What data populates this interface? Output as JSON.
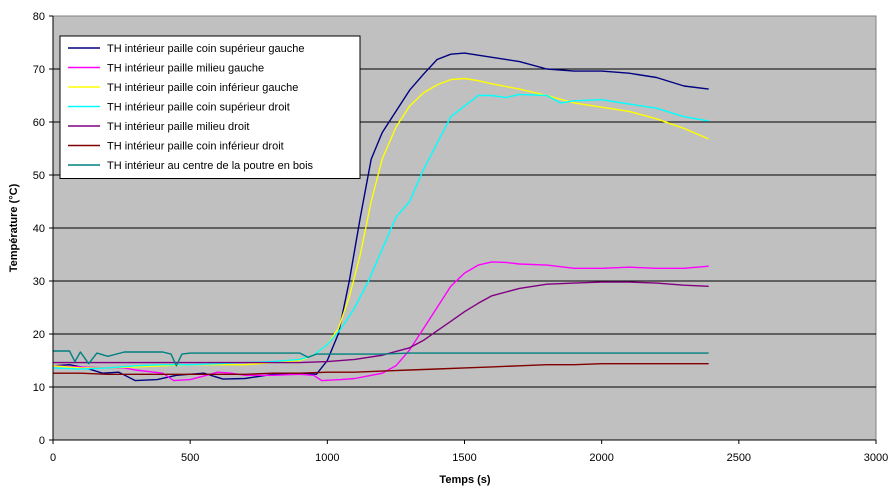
{
  "chart_data": {
    "type": "line",
    "xlabel": "Temps (s)",
    "ylabel": "Température (°C)",
    "xlim": [
      0,
      3000
    ],
    "ylim": [
      0,
      80
    ],
    "xticks": [
      0,
      500,
      1000,
      1500,
      2000,
      2500,
      3000
    ],
    "yticks": [
      0,
      10,
      20,
      30,
      40,
      50,
      60,
      70,
      80
    ],
    "grid": "horizontal",
    "legend_position": "top-left",
    "plot_background": "#c0c0c0",
    "series": [
      {
        "name": "TH intérieur paille coin supérieur gauche",
        "color": "#000080",
        "points": [
          [
            0,
            14
          ],
          [
            60,
            14.2
          ],
          [
            120,
            13.6
          ],
          [
            180,
            12.6
          ],
          [
            240,
            12.8
          ],
          [
            300,
            11.2
          ],
          [
            380,
            11.4
          ],
          [
            450,
            12.2
          ],
          [
            550,
            12.6
          ],
          [
            620,
            11.5
          ],
          [
            700,
            11.6
          ],
          [
            800,
            12.4
          ],
          [
            900,
            12.6
          ],
          [
            960,
            12.4
          ],
          [
            1000,
            15
          ],
          [
            1040,
            20
          ],
          [
            1080,
            30
          ],
          [
            1120,
            42
          ],
          [
            1160,
            53
          ],
          [
            1200,
            58
          ],
          [
            1250,
            62
          ],
          [
            1300,
            66
          ],
          [
            1350,
            69
          ],
          [
            1400,
            71.8
          ],
          [
            1450,
            72.8
          ],
          [
            1500,
            73
          ],
          [
            1550,
            72.6
          ],
          [
            1600,
            72.2
          ],
          [
            1700,
            71.4
          ],
          [
            1800,
            70
          ],
          [
            1900,
            69.6
          ],
          [
            2000,
            69.6
          ],
          [
            2100,
            69.2
          ],
          [
            2200,
            68.4
          ],
          [
            2300,
            66.8
          ],
          [
            2390,
            66.2
          ]
        ]
      },
      {
        "name": "TH intérieur paille milieu gauche",
        "color": "#ff00ff",
        "points": [
          [
            0,
            14
          ],
          [
            100,
            13.8
          ],
          [
            200,
            13.6
          ],
          [
            260,
            13.6
          ],
          [
            300,
            13.2
          ],
          [
            400,
            12.6
          ],
          [
            440,
            11.2
          ],
          [
            500,
            11.4
          ],
          [
            560,
            12.2
          ],
          [
            600,
            12.8
          ],
          [
            650,
            12.6
          ],
          [
            700,
            12.2
          ],
          [
            800,
            12.2
          ],
          [
            900,
            12.4
          ],
          [
            950,
            12.2
          ],
          [
            980,
            11.2
          ],
          [
            1050,
            11.4
          ],
          [
            1100,
            11.6
          ],
          [
            1200,
            12.6
          ],
          [
            1250,
            14
          ],
          [
            1300,
            17
          ],
          [
            1350,
            21
          ],
          [
            1400,
            25
          ],
          [
            1450,
            29
          ],
          [
            1500,
            31.5
          ],
          [
            1550,
            33
          ],
          [
            1600,
            33.6
          ],
          [
            1650,
            33.5
          ],
          [
            1700,
            33.2
          ],
          [
            1800,
            33
          ],
          [
            1900,
            32.4
          ],
          [
            2000,
            32.4
          ],
          [
            2100,
            32.6
          ],
          [
            2200,
            32.4
          ],
          [
            2300,
            32.4
          ],
          [
            2390,
            32.8
          ]
        ]
      },
      {
        "name": "TH intérieur paille coin inférieur gauche",
        "color": "#ffff00",
        "points": [
          [
            0,
            14
          ],
          [
            100,
            13.6
          ],
          [
            200,
            13.6
          ],
          [
            300,
            13.8
          ],
          [
            400,
            14
          ],
          [
            500,
            14.2
          ],
          [
            600,
            14.2
          ],
          [
            700,
            14.2
          ],
          [
            800,
            14.6
          ],
          [
            900,
            15
          ],
          [
            950,
            16
          ],
          [
            1000,
            18
          ],
          [
            1040,
            21
          ],
          [
            1080,
            27
          ],
          [
            1120,
            35
          ],
          [
            1160,
            45
          ],
          [
            1200,
            53
          ],
          [
            1250,
            59
          ],
          [
            1300,
            63
          ],
          [
            1350,
            65.5
          ],
          [
            1400,
            67
          ],
          [
            1450,
            68
          ],
          [
            1500,
            68.2
          ],
          [
            1550,
            67.8
          ],
          [
            1600,
            67.2
          ],
          [
            1700,
            66.2
          ],
          [
            1800,
            65
          ],
          [
            1900,
            63.6
          ],
          [
            2000,
            62.8
          ],
          [
            2100,
            62
          ],
          [
            2200,
            60.6
          ],
          [
            2300,
            58.8
          ],
          [
            2390,
            56.8
          ]
        ]
      },
      {
        "name": "TH intérieur paille coin supérieur droit",
        "color": "#00ffff",
        "points": [
          [
            0,
            13.6
          ],
          [
            100,
            13.4
          ],
          [
            200,
            13.6
          ],
          [
            300,
            14
          ],
          [
            400,
            14.2
          ],
          [
            500,
            14.2
          ],
          [
            600,
            14.4
          ],
          [
            700,
            14.6
          ],
          [
            800,
            14.8
          ],
          [
            900,
            15.2
          ],
          [
            950,
            16
          ],
          [
            1000,
            18
          ],
          [
            1050,
            21
          ],
          [
            1100,
            25
          ],
          [
            1150,
            30
          ],
          [
            1200,
            36
          ],
          [
            1250,
            42
          ],
          [
            1300,
            45
          ],
          [
            1350,
            51
          ],
          [
            1400,
            56
          ],
          [
            1450,
            61
          ],
          [
            1500,
            63
          ],
          [
            1550,
            65
          ],
          [
            1600,
            65
          ],
          [
            1650,
            64.6
          ],
          [
            1700,
            65.2
          ],
          [
            1800,
            65
          ],
          [
            1850,
            63.6
          ],
          [
            1900,
            64
          ],
          [
            2000,
            64.2
          ],
          [
            2100,
            63.4
          ],
          [
            2200,
            62.6
          ],
          [
            2300,
            61
          ],
          [
            2390,
            60.2
          ]
        ]
      },
      {
        "name": "TH intérieur paille milieu droit",
        "color": "#800080",
        "points": [
          [
            0,
            14.6
          ],
          [
            100,
            14.6
          ],
          [
            200,
            14.6
          ],
          [
            300,
            14.6
          ],
          [
            400,
            14.6
          ],
          [
            500,
            14.6
          ],
          [
            600,
            14.6
          ],
          [
            700,
            14.6
          ],
          [
            800,
            14.6
          ],
          [
            900,
            14.6
          ],
          [
            1000,
            14.8
          ],
          [
            1100,
            15.2
          ],
          [
            1200,
            16
          ],
          [
            1300,
            17.4
          ],
          [
            1350,
            18.8
          ],
          [
            1400,
            20.6
          ],
          [
            1450,
            22.4
          ],
          [
            1500,
            24.2
          ],
          [
            1550,
            25.8
          ],
          [
            1600,
            27.2
          ],
          [
            1700,
            28.6
          ],
          [
            1800,
            29.4
          ],
          [
            1900,
            29.6
          ],
          [
            2000,
            29.8
          ],
          [
            2100,
            29.8
          ],
          [
            2200,
            29.6
          ],
          [
            2300,
            29.2
          ],
          [
            2390,
            29
          ]
        ]
      },
      {
        "name": "TH intérieur paille coin inférieur droit",
        "color": "#800000",
        "points": [
          [
            0,
            12.6
          ],
          [
            100,
            12.6
          ],
          [
            200,
            12.4
          ],
          [
            300,
            12.4
          ],
          [
            400,
            12.4
          ],
          [
            500,
            12.4
          ],
          [
            600,
            12.4
          ],
          [
            700,
            12.4
          ],
          [
            800,
            12.6
          ],
          [
            900,
            12.6
          ],
          [
            1000,
            12.8
          ],
          [
            1100,
            12.8
          ],
          [
            1200,
            13
          ],
          [
            1300,
            13.2
          ],
          [
            1400,
            13.4
          ],
          [
            1500,
            13.6
          ],
          [
            1600,
            13.8
          ],
          [
            1700,
            14
          ],
          [
            1800,
            14.2
          ],
          [
            1900,
            14.2
          ],
          [
            2000,
            14.4
          ],
          [
            2100,
            14.4
          ],
          [
            2200,
            14.4
          ],
          [
            2300,
            14.4
          ],
          [
            2390,
            14.4
          ]
        ]
      },
      {
        "name": "TH intérieur au centre de la poutre en bois",
        "color": "#008080",
        "points": [
          [
            0,
            16.8
          ],
          [
            60,
            16.8
          ],
          [
            80,
            14.8
          ],
          [
            100,
            16.6
          ],
          [
            130,
            14.4
          ],
          [
            160,
            16.4
          ],
          [
            200,
            15.8
          ],
          [
            260,
            16.6
          ],
          [
            300,
            16.6
          ],
          [
            350,
            16.6
          ],
          [
            400,
            16.6
          ],
          [
            430,
            16.2
          ],
          [
            450,
            14
          ],
          [
            470,
            16.2
          ],
          [
            500,
            16.4
          ],
          [
            600,
            16.4
          ],
          [
            700,
            16.4
          ],
          [
            800,
            16.4
          ],
          [
            900,
            16.4
          ],
          [
            930,
            15.6
          ],
          [
            960,
            16.2
          ],
          [
            1000,
            16.2
          ],
          [
            1100,
            16.2
          ],
          [
            1200,
            16.2
          ],
          [
            1300,
            16.4
          ],
          [
            1400,
            16.4
          ],
          [
            1500,
            16.4
          ],
          [
            1600,
            16.4
          ],
          [
            1700,
            16.4
          ],
          [
            1800,
            16.4
          ],
          [
            1900,
            16.4
          ],
          [
            2000,
            16.4
          ],
          [
            2100,
            16.4
          ],
          [
            2200,
            16.4
          ],
          [
            2300,
            16.4
          ],
          [
            2390,
            16.4
          ]
        ]
      }
    ]
  }
}
